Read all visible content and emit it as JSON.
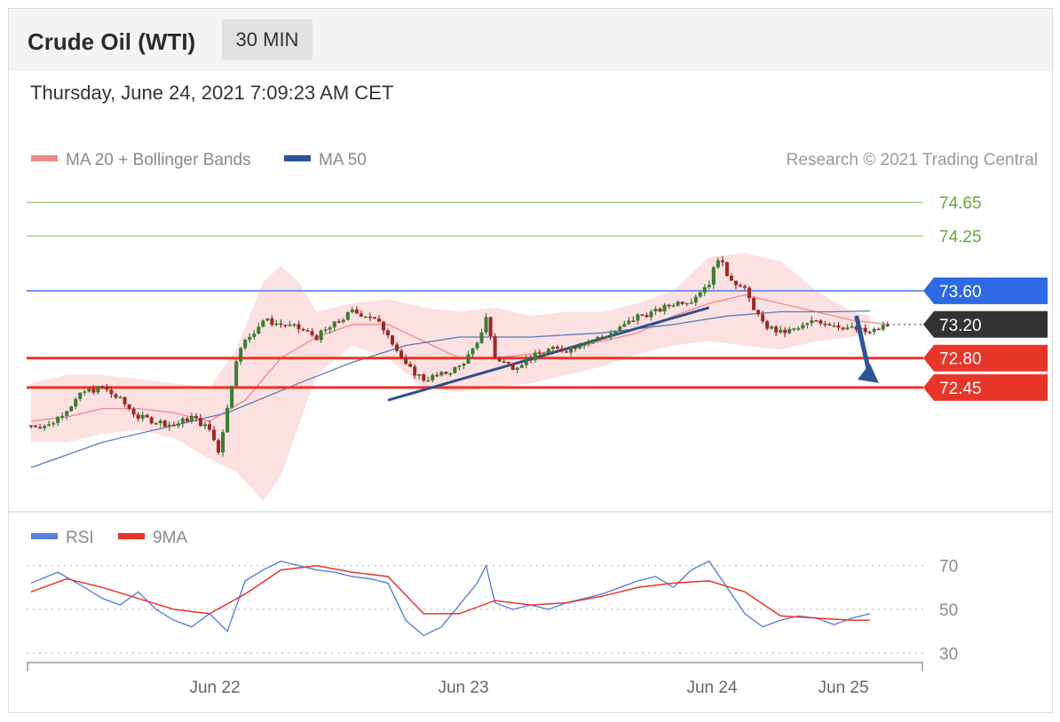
{
  "header": {
    "title": "Crude Oil (WTI)",
    "timeframe": "30 MIN"
  },
  "date": "Thursday, June 24, 2021 7:09:23 AM CET",
  "legend": {
    "ma20": {
      "label": "MA 20 + Bollinger Bands",
      "color": "#f08a8a"
    },
    "ma50": {
      "label": "MA 50",
      "color": "#2f5597"
    }
  },
  "credit": "Research © 2021 Trading Central",
  "rsi_legend": {
    "rsi": {
      "label": "RSI",
      "color": "#5b7fe0"
    },
    "ma9": {
      "label": "9MA",
      "color": "#e8352a"
    }
  },
  "chart_data": [
    {
      "type": "candlestick",
      "ylim": [
        71.1,
        75.0
      ],
      "x_ticks": [
        "Jun 22",
        "Jun 23",
        "Jun 24",
        "Jun 25"
      ],
      "levels": [
        {
          "value": 74.65,
          "label": "74.65",
          "kind": "target",
          "color": "#7cb342"
        },
        {
          "value": 74.25,
          "label": "74.25",
          "kind": "target",
          "color": "#7cb342"
        },
        {
          "value": 73.6,
          "label": "73.60",
          "kind": "resistance",
          "color": "#2d6ae3"
        },
        {
          "value": 73.2,
          "label": "73.20",
          "kind": "last price",
          "color": "#333333"
        },
        {
          "value": 72.8,
          "label": "72.80",
          "kind": "support",
          "color": "#e8352a"
        },
        {
          "value": 72.45,
          "label": "72.45",
          "kind": "support",
          "color": "#e8352a"
        }
      ],
      "close_path": [
        [
          0,
          72.0
        ],
        [
          2,
          72.0
        ],
        [
          4,
          72.2
        ],
        [
          6,
          72.4
        ],
        [
          8,
          72.45
        ],
        [
          10,
          72.3
        ],
        [
          12,
          72.1
        ],
        [
          14,
          72.05
        ],
        [
          16,
          72.0
        ],
        [
          18,
          72.1
        ],
        [
          20,
          71.95
        ],
        [
          21,
          71.7
        ],
        [
          22,
          72.2
        ],
        [
          23,
          72.8
        ],
        [
          24,
          73.0
        ],
        [
          26,
          73.25
        ],
        [
          28,
          73.2
        ],
        [
          30,
          73.15
        ],
        [
          32,
          73.05
        ],
        [
          34,
          73.2
        ],
        [
          36,
          73.35
        ],
        [
          38,
          73.3
        ],
        [
          40,
          73.1
        ],
        [
          42,
          72.7
        ],
        [
          44,
          72.55
        ],
        [
          46,
          72.6
        ],
        [
          48,
          72.7
        ],
        [
          50,
          72.95
        ],
        [
          51,
          73.3
        ],
        [
          52,
          72.8
        ],
        [
          54,
          72.7
        ],
        [
          56,
          72.8
        ],
        [
          58,
          72.9
        ],
        [
          60,
          72.9
        ],
        [
          62,
          73.0
        ],
        [
          64,
          73.05
        ],
        [
          66,
          73.15
        ],
        [
          68,
          73.3
        ],
        [
          70,
          73.35
        ],
        [
          72,
          73.45
        ],
        [
          74,
          73.5
        ],
        [
          76,
          73.7
        ],
        [
          77,
          74.0
        ],
        [
          78,
          73.8
        ],
        [
          80,
          73.6
        ],
        [
          82,
          73.2
        ],
        [
          84,
          73.1
        ],
        [
          86,
          73.15
        ],
        [
          88,
          73.25
        ],
        [
          90,
          73.2
        ],
        [
          92,
          73.15
        ],
        [
          94,
          73.1
        ],
        [
          96,
          73.2
        ]
      ],
      "ma20": [
        [
          0,
          72.05
        ],
        [
          4,
          72.1
        ],
        [
          8,
          72.2
        ],
        [
          12,
          72.2
        ],
        [
          16,
          72.15
        ],
        [
          20,
          72.05
        ],
        [
          24,
          72.3
        ],
        [
          28,
          72.8
        ],
        [
          32,
          73.05
        ],
        [
          36,
          73.2
        ],
        [
          40,
          73.2
        ],
        [
          44,
          73.0
        ],
        [
          48,
          72.8
        ],
        [
          52,
          72.8
        ],
        [
          56,
          72.85
        ],
        [
          60,
          72.9
        ],
        [
          64,
          73.0
        ],
        [
          68,
          73.1
        ],
        [
          72,
          73.3
        ],
        [
          76,
          73.45
        ],
        [
          80,
          73.55
        ],
        [
          84,
          73.45
        ],
        [
          88,
          73.35
        ],
        [
          92,
          73.25
        ],
        [
          96,
          73.2
        ]
      ],
      "bollinger": [
        [
          0,
          72.5,
          71.8
        ],
        [
          4,
          72.6,
          71.8
        ],
        [
          8,
          72.6,
          71.9
        ],
        [
          12,
          72.55,
          71.95
        ],
        [
          16,
          72.5,
          71.85
        ],
        [
          20,
          72.45,
          71.6
        ],
        [
          23,
          72.9,
          71.45
        ],
        [
          26,
          73.7,
          71.1
        ],
        [
          28,
          73.9,
          71.4
        ],
        [
          30,
          73.7,
          72.0
        ],
        [
          32,
          73.35,
          72.6
        ],
        [
          36,
          73.45,
          72.95
        ],
        [
          40,
          73.5,
          72.8
        ],
        [
          44,
          73.4,
          72.45
        ],
        [
          48,
          73.35,
          72.4
        ],
        [
          52,
          73.4,
          72.45
        ],
        [
          56,
          73.3,
          72.5
        ],
        [
          60,
          73.35,
          72.6
        ],
        [
          64,
          73.35,
          72.7
        ],
        [
          68,
          73.45,
          72.85
        ],
        [
          72,
          73.6,
          72.95
        ],
        [
          76,
          74.0,
          73.0
        ],
        [
          80,
          74.05,
          72.95
        ],
        [
          84,
          73.95,
          72.9
        ],
        [
          88,
          73.6,
          73.0
        ],
        [
          92,
          73.35,
          73.05
        ],
        [
          94,
          73.3,
          73.1
        ]
      ],
      "ma50": [
        [
          0,
          71.5
        ],
        [
          8,
          71.8
        ],
        [
          16,
          72.0
        ],
        [
          22,
          72.15
        ],
        [
          30,
          72.5
        ],
        [
          36,
          72.75
        ],
        [
          42,
          72.95
        ],
        [
          48,
          73.05
        ],
        [
          56,
          73.05
        ],
        [
          64,
          73.1
        ],
        [
          72,
          73.2
        ],
        [
          78,
          73.3
        ],
        [
          84,
          73.35
        ],
        [
          90,
          73.35
        ],
        [
          94,
          73.36
        ]
      ],
      "trendline": [
        [
          40,
          72.3
        ],
        [
          76,
          73.4
        ]
      ],
      "forecast_arrow": [
        [
          92,
          73.25
        ],
        [
          98,
          72.45
        ]
      ]
    },
    {
      "type": "line",
      "title": "RSI",
      "ylim": [
        20,
        80
      ],
      "ticks": [
        70,
        50,
        30
      ],
      "rsi": [
        [
          0,
          62
        ],
        [
          3,
          67
        ],
        [
          6,
          60
        ],
        [
          8,
          55
        ],
        [
          10,
          52
        ],
        [
          12,
          58
        ],
        [
          14,
          50
        ],
        [
          16,
          45
        ],
        [
          18,
          42
        ],
        [
          20,
          48
        ],
        [
          22,
          40
        ],
        [
          24,
          63
        ],
        [
          26,
          68
        ],
        [
          28,
          72
        ],
        [
          30,
          70
        ],
        [
          32,
          68
        ],
        [
          34,
          67
        ],
        [
          36,
          65
        ],
        [
          38,
          64
        ],
        [
          40,
          62
        ],
        [
          42,
          45
        ],
        [
          44,
          38
        ],
        [
          46,
          42
        ],
        [
          48,
          52
        ],
        [
          50,
          62
        ],
        [
          51,
          70
        ],
        [
          52,
          53
        ],
        [
          54,
          50
        ],
        [
          56,
          52
        ],
        [
          58,
          50
        ],
        [
          60,
          53
        ],
        [
          62,
          55
        ],
        [
          64,
          57
        ],
        [
          66,
          60
        ],
        [
          68,
          63
        ],
        [
          70,
          65
        ],
        [
          72,
          60
        ],
        [
          74,
          68
        ],
        [
          76,
          72
        ],
        [
          78,
          60
        ],
        [
          80,
          48
        ],
        [
          82,
          42
        ],
        [
          84,
          45
        ],
        [
          86,
          47
        ],
        [
          88,
          46
        ],
        [
          90,
          43
        ],
        [
          92,
          46
        ],
        [
          94,
          48
        ]
      ],
      "ma9": [
        [
          0,
          58
        ],
        [
          4,
          64
        ],
        [
          8,
          60
        ],
        [
          12,
          55
        ],
        [
          16,
          50
        ],
        [
          20,
          48
        ],
        [
          24,
          57
        ],
        [
          28,
          68
        ],
        [
          32,
          70
        ],
        [
          36,
          67
        ],
        [
          40,
          65
        ],
        [
          44,
          48
        ],
        [
          48,
          48
        ],
        [
          52,
          54
        ],
        [
          56,
          52
        ],
        [
          60,
          53
        ],
        [
          64,
          56
        ],
        [
          68,
          60
        ],
        [
          72,
          62
        ],
        [
          76,
          63
        ],
        [
          80,
          58
        ],
        [
          84,
          47
        ],
        [
          88,
          46
        ],
        [
          92,
          45
        ],
        [
          94,
          45
        ]
      ]
    }
  ]
}
